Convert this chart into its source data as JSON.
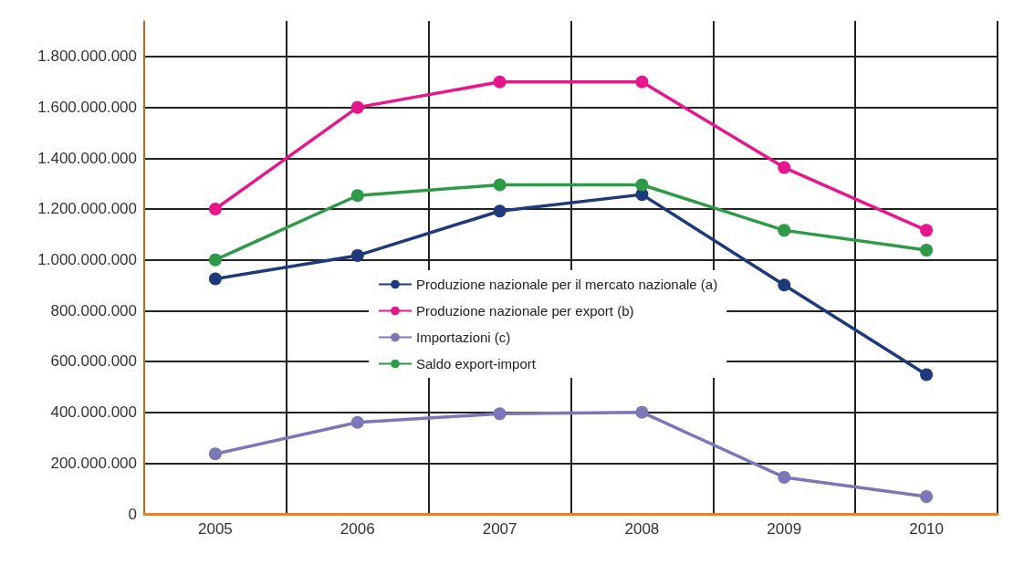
{
  "chart_data": {
    "type": "line",
    "categories": [
      "2005",
      "2006",
      "2007",
      "2008",
      "2009",
      "2010"
    ],
    "series": [
      {
        "name": "Produzione nazionale per il mercato nazionale (a)",
        "color": "#1f3a7a",
        "values": [
          925000000,
          1017000000,
          1192000000,
          1257000000,
          901000000,
          548000000
        ]
      },
      {
        "name": "Produzione nazionale per export (b)",
        "color": "#e8168c",
        "values": [
          1200000000,
          1600000000,
          1700000000,
          1700000000,
          1363000000,
          1116000000
        ]
      },
      {
        "name": "Importazioni (c)",
        "color": "#7b78b8",
        "values": [
          236000000,
          360000000,
          394000000,
          400000000,
          144000000,
          68000000
        ]
      },
      {
        "name": "Saldo export-import",
        "color": "#2e9a48",
        "values": [
          1000000000,
          1253000000,
          1295000000,
          1295000000,
          1116000000,
          1038000000
        ]
      }
    ],
    "ylim": [
      0,
      1940000000
    ],
    "yticks": [
      {
        "value": 0,
        "label": "0"
      },
      {
        "value": 200000000,
        "label": "200.000.000"
      },
      {
        "value": 400000000,
        "label": "400.000.000"
      },
      {
        "value": 600000000,
        "label": "600.000.000"
      },
      {
        "value": 800000000,
        "label": "800.000.000"
      },
      {
        "value": 1000000000,
        "label": "1.000.000.000"
      },
      {
        "value": 1200000000,
        "label": "1.200.000.000"
      },
      {
        "value": 1400000000,
        "label": "1.400.000.000"
      },
      {
        "value": 1600000000,
        "label": "1.600.000.000"
      },
      {
        "value": 1800000000,
        "label": "1.800.000.000"
      }
    ],
    "grid": true,
    "legend": "center",
    "marker": "circle",
    "line_style": "solid"
  }
}
